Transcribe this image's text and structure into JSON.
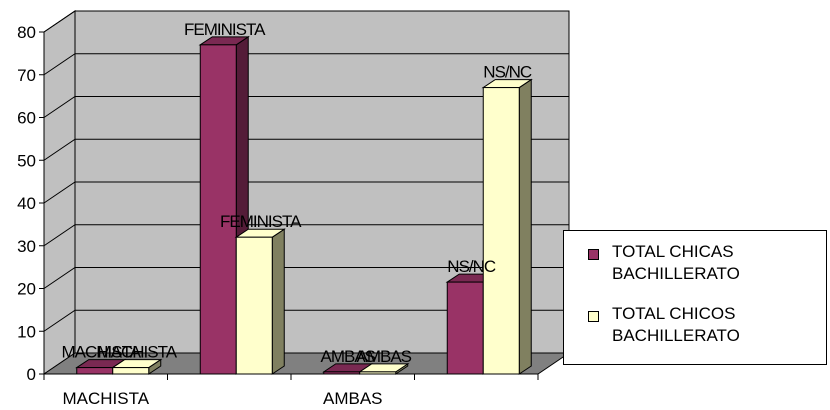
{
  "chart_data": {
    "type": "bar",
    "categories": [
      "MACHISTA",
      "FEMINISTA",
      "AMBAS",
      "NS/NC"
    ],
    "x_tick_labels": [
      "MACHISTA",
      "",
      "AMBAS",
      ""
    ],
    "series": [
      {
        "name": "TOTAL CHICAS BACHILLERATO",
        "values": [
          1.5,
          77,
          0.5,
          21.5
        ],
        "color": "#993366"
      },
      {
        "name": "TOTAL CHICOS BACHILLERATO",
        "values": [
          1.5,
          32,
          0.5,
          67
        ],
        "color": "#ffffcc"
      }
    ],
    "data_labels": [
      [
        "MACHISTA",
        "FEMINISTA",
        "AMBAS",
        "NS/NC"
      ],
      [
        "MACHISTA",
        "FEMINISTA",
        "AMBAS",
        "NS/NC"
      ]
    ],
    "yticks": [
      "0",
      "10",
      "20",
      "30",
      "40",
      "50",
      "60",
      "70",
      "80"
    ],
    "ylim": [
      0,
      80
    ],
    "grid": true,
    "three_d": true,
    "legend_position": "right",
    "colors": {
      "plot_wall": "#c0c0c0",
      "floor": "#808080",
      "gridline": "#000000"
    }
  },
  "legend": {
    "items": [
      {
        "line1": "TOTAL CHICAS",
        "line2": "BACHILLERATO",
        "color": "#993366"
      },
      {
        "line1": "TOTAL CHICOS",
        "line2": "BACHILLERATO",
        "color": "#ffffcc"
      }
    ]
  }
}
